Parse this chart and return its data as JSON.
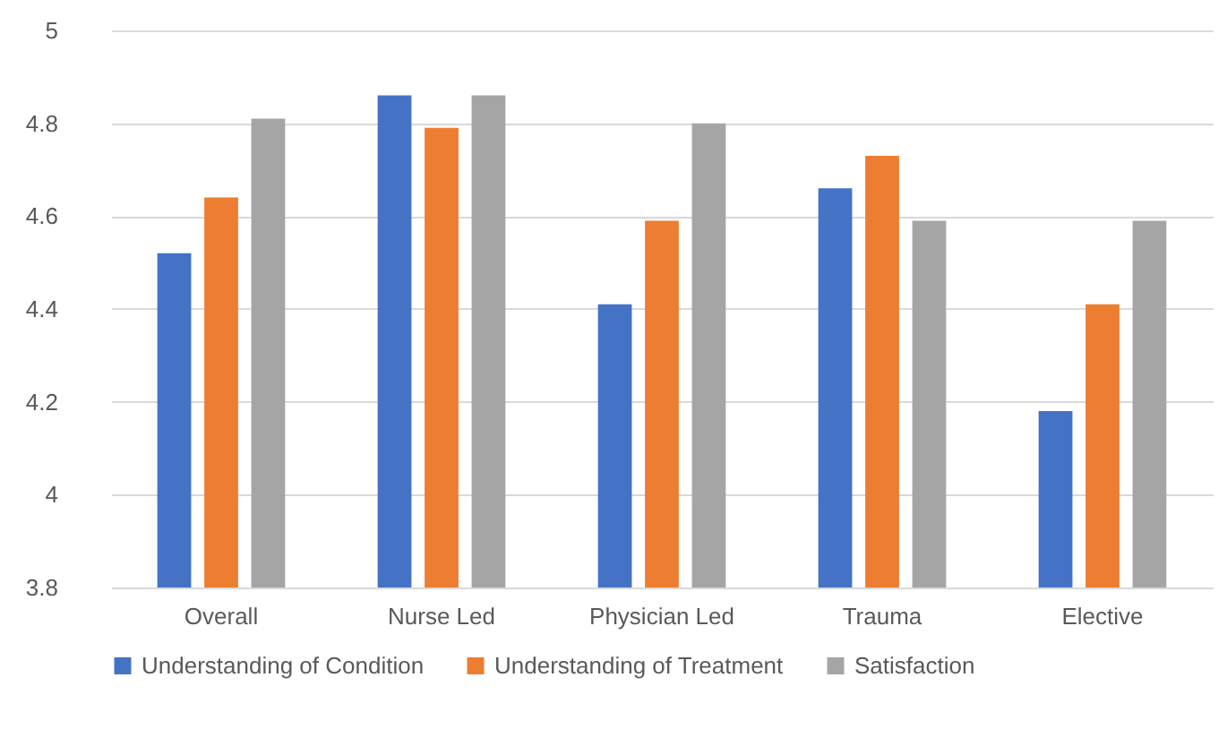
{
  "chart_data": {
    "type": "bar",
    "categories": [
      "Overall",
      "Nurse Led",
      "Physician Led",
      "Trauma",
      "Elective"
    ],
    "series": [
      {
        "name": "Understanding of Condition",
        "color": "#4472c4",
        "values": [
          4.52,
          4.86,
          4.41,
          4.66,
          4.18
        ]
      },
      {
        "name": "Understanding of Treatment",
        "color": "#ed7d31",
        "values": [
          4.64,
          4.79,
          4.59,
          4.73,
          4.41
        ]
      },
      {
        "name": "Satisfaction",
        "color": "#a5a5a5",
        "values": [
          4.81,
          4.86,
          4.8,
          4.59,
          4.59
        ]
      }
    ],
    "ylim": [
      3.8,
      5
    ],
    "yticks": [
      3.8,
      4,
      4.2,
      4.4,
      4.6,
      4.8,
      5
    ],
    "grid": "y",
    "legend": "bottom"
  }
}
